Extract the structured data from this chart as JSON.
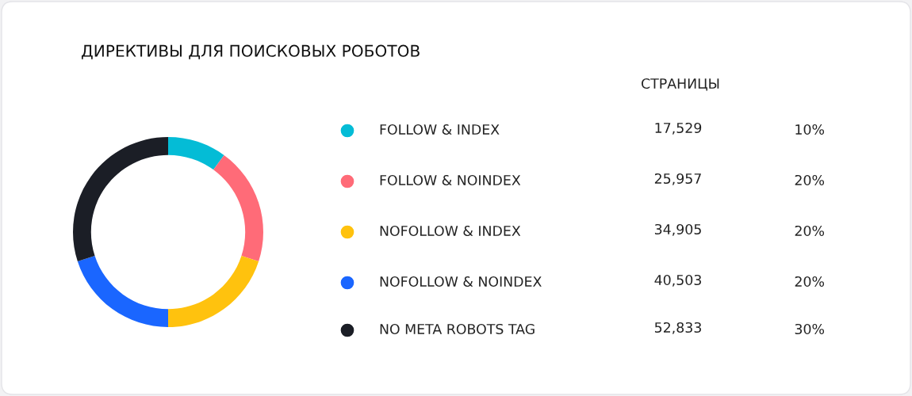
{
  "chart_data": [
    {
      "type": "donut",
      "title": "ДИРЕКТИВЫ ДЛЯ ПОИСКОВЫХ РОБОТОВ",
      "categories": [
        "FOLLOW & INDEX",
        "FOLLOW & NOINDEX",
        "NOFOLLOW & INDEX",
        "NOFOLLOW & NOINDEX",
        "NO META ROBOTS TAG"
      ],
      "values": [
        10,
        20,
        20,
        20,
        30
      ],
      "value_labels": [
        "10%",
        "20%",
        "20%",
        "20%",
        "30%"
      ],
      "colors": [
        "#04bcd6",
        "#ff6b78",
        "#ffc20e",
        "#1a66ff",
        "#1b1e26"
      ],
      "legend": "right"
    },
    {
      "type": "other",
      "title": "СТРАНИЦЫ",
      "values": [
        17529,
        25957,
        34905,
        40503,
        52833
      ],
      "value_labels": [
        "17,529",
        "25,957",
        "34,905",
        "40,503",
        "52,833"
      ]
    }
  ]
}
